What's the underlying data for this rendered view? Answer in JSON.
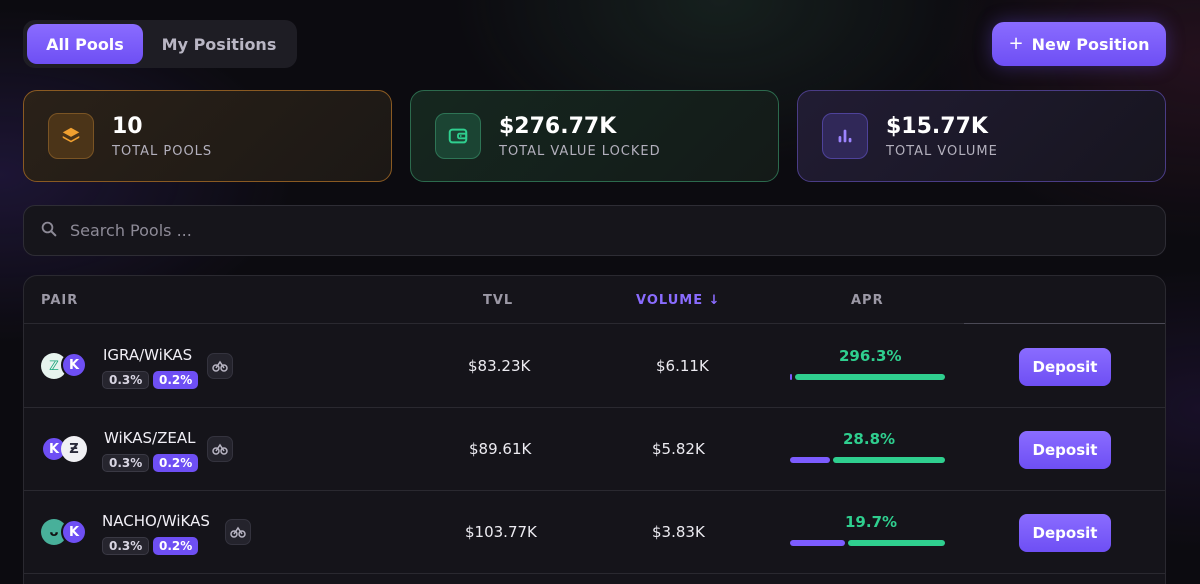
{
  "tabs": [
    {
      "label": "All Pools",
      "active": true
    },
    {
      "label": "My Positions",
      "active": false
    }
  ],
  "new_position": {
    "label": "New Position",
    "icon": "plus-icon"
  },
  "stats": [
    {
      "value": "10",
      "label": "TOTAL POOLS",
      "icon": "layers-icon",
      "color": "#f0a030"
    },
    {
      "value": "$276.77K",
      "label": "TOTAL VALUE LOCKED",
      "icon": "wallet-icon",
      "color": "#2fcf8f"
    },
    {
      "value": "$15.77K",
      "label": "TOTAL VOLUME",
      "icon": "bar-chart-icon",
      "color": "#8a6cff"
    }
  ],
  "search": {
    "placeholder": "Search Pools ...",
    "value": ""
  },
  "table": {
    "headers": {
      "pair": "PAIR",
      "tvl": "TVL",
      "volume": "VOLUME ↓",
      "apr": "APR"
    },
    "rows": [
      {
        "pair": "IGRA/WiKAS",
        "tokens": [
          "IGRA",
          "WiKAS"
        ],
        "fee_a": "0.3%",
        "fee_b": "0.2%",
        "tvl": "$83.23K",
        "volume": "$6.11K",
        "apr": "296.3%",
        "apr_split": [
          0.01,
          0.99
        ],
        "action": "Deposit"
      },
      {
        "pair": "WiKAS/ZEAL",
        "tokens": [
          "WiKAS",
          "ZEAL"
        ],
        "fee_a": "0.3%",
        "fee_b": "0.2%",
        "tvl": "$89.61K",
        "volume": "$5.82K",
        "apr": "28.8%",
        "apr_split": [
          0.26,
          0.74
        ],
        "action": "Deposit"
      },
      {
        "pair": "NACHO/WiKAS",
        "tokens": [
          "NACHO",
          "WiKAS"
        ],
        "fee_a": "0.3%",
        "fee_b": "0.2%",
        "tvl": "$103.77K",
        "volume": "$3.83K",
        "apr": "19.7%",
        "apr_split": [
          0.36,
          0.64
        ],
        "action": "Deposit"
      }
    ]
  }
}
